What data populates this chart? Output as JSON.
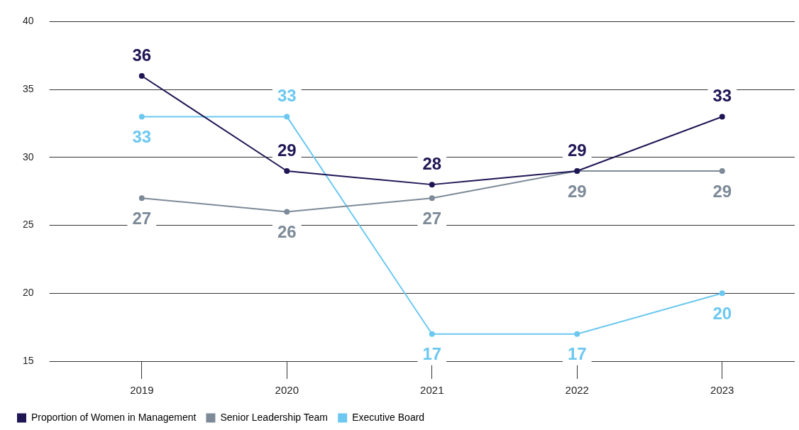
{
  "chart_data": {
    "type": "line",
    "categories": [
      "2019",
      "2020",
      "2021",
      "2022",
      "2023"
    ],
    "series": [
      {
        "name": "Proportion of Women in Management",
        "color": "#1f1654",
        "values": [
          36,
          29,
          28,
          29,
          33
        ]
      },
      {
        "name": "Senior Leadership Team",
        "color": "#7d8a98",
        "values": [
          27,
          26,
          27,
          29,
          29
        ]
      },
      {
        "name": "Executive Board",
        "color": "#6cc8f0",
        "values": [
          33,
          33,
          17,
          17,
          20
        ]
      }
    ],
    "ylim": [
      15,
      40
    ],
    "yticks": [
      15,
      20,
      25,
      30,
      35,
      40
    ],
    "grid": "y",
    "legend": "bottom left",
    "marker": "circle",
    "line_style": "solid",
    "data_labels": true
  }
}
